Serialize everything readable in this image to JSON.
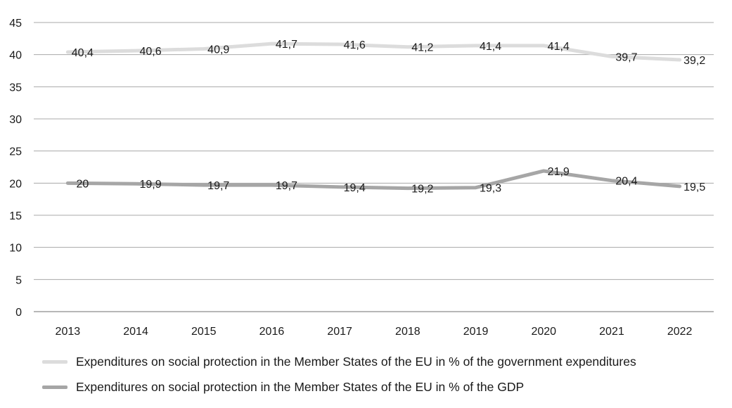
{
  "chart_data": {
    "type": "line",
    "categories": [
      "2013",
      "2014",
      "2015",
      "2016",
      "2017",
      "2018",
      "2019",
      "2020",
      "2021",
      "2022"
    ],
    "series": [
      {
        "name": "Expenditures on social protection in the Member States of the EU in % of the government expenditures",
        "values": [
          40.4,
          40.6,
          40.9,
          41.7,
          41.6,
          41.2,
          41.4,
          41.4,
          39.7,
          39.2
        ],
        "labels": [
          "40,4",
          "40,6",
          "40,9",
          "41,7",
          "41,6",
          "41,2",
          "41,4",
          "41,4",
          "39,7",
          "39,2"
        ],
        "color": "#dcdcdc"
      },
      {
        "name": "Expenditures on social protection in the Member States of the EU in % of the GDP",
        "values": [
          20,
          19.9,
          19.7,
          19.7,
          19.4,
          19.2,
          19.3,
          21.9,
          20.4,
          19.5
        ],
        "labels": [
          "20",
          "19,9",
          "19,7",
          "19,7",
          "19,4",
          "19,2",
          "19,3",
          "21,9",
          "20,4",
          "19,5"
        ],
        "color": "#a6a6a6"
      }
    ],
    "ylim": [
      0,
      45
    ],
    "yticks": [
      "0",
      "5",
      "10",
      "15",
      "20",
      "25",
      "30",
      "35",
      "40",
      "45"
    ],
    "grid": true,
    "legend_position": "bottom",
    "title": "",
    "xlabel": "",
    "ylabel": ""
  }
}
